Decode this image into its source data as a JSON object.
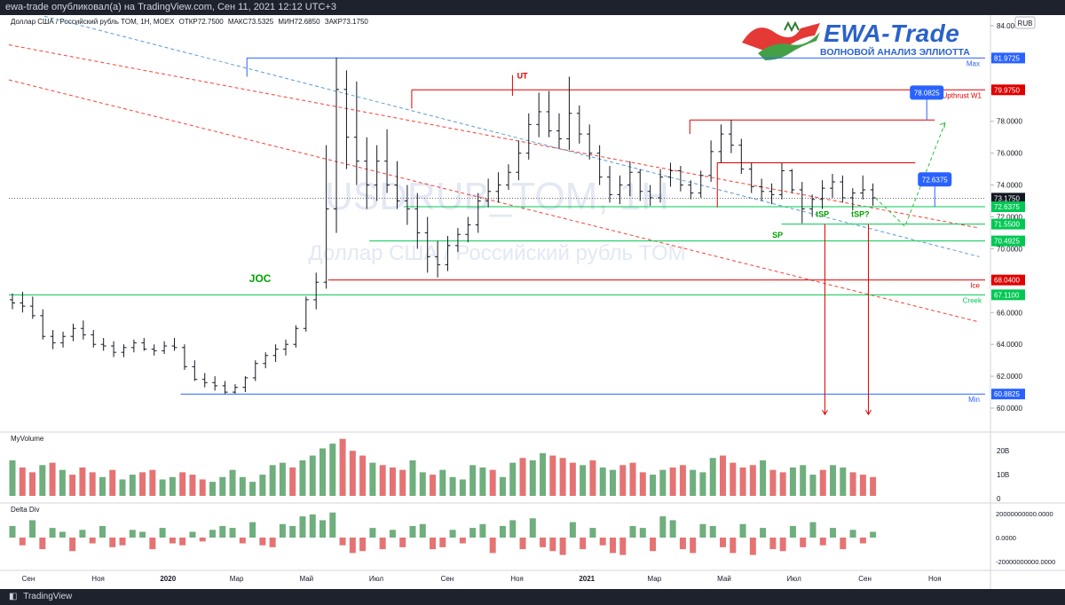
{
  "header": {
    "publish_text": "ewa-trade опубликовал(а) на TradingView.com, Сен 11, 2021 12:12 UTC+3"
  },
  "symbol_info": {
    "name": "Доллар США / Российский рубль TOM, 1Н, MOEX",
    "open": "ОТКР72.7500",
    "high": "МАКС73.5325",
    "low": "МИН72.6850",
    "close": "ЗАКР73.1750"
  },
  "currency_badge": "RUB",
  "logo": {
    "title": "EWA-Trade",
    "subtitle": "ВОЛНОВОЙ АНАЛИЗ ЭЛЛИОТТА"
  },
  "watermark": {
    "ticker": "USDRUB_TOM, 1H",
    "name": "Доллар США / Российский рубль TOM"
  },
  "footer": {
    "brand": "TradingView"
  },
  "colors": {
    "up": "#6fae7d",
    "down": "#e57373",
    "level_blue": "#2962ff",
    "level_red": "#e00000",
    "level_green": "#00c853",
    "channel_red": "#f44336",
    "channel_blue": "#5b9bd5",
    "forecast": "#2ebf3a"
  },
  "chart_data": [
    {
      "type": "bar",
      "panel": "price",
      "title": "",
      "ylim": [
        59,
        84.5
      ],
      "y_ticks": [
        "84.0000",
        "82.0000",
        "80.0000",
        "78.0000",
        "76.0000",
        "74.0000",
        "72.0000",
        "70.0000",
        "68.0000",
        "66.0000",
        "64.0000",
        "62.0000",
        "60.0000"
      ],
      "x_tick_labels": [
        "Сен",
        "Ноя",
        "2020",
        "Мар",
        "Май",
        "Июл",
        "Сен",
        "Ноя",
        "2021",
        "Мар",
        "Май",
        "Июл",
        "Сен",
        "Ноя"
      ],
      "x_range": [
        "2019-08-15",
        "2021-12-15"
      ],
      "series_note": "OHLC bars, approximate",
      "ohlc": [
        [
          66.8,
          67.2,
          66.2,
          66.6
        ],
        [
          66.6,
          67.3,
          66.0,
          66.4
        ],
        [
          66.4,
          67.0,
          65.6,
          65.8
        ],
        [
          65.8,
          66.2,
          64.3,
          64.5
        ],
        [
          64.5,
          64.9,
          63.7,
          64.1
        ],
        [
          64.1,
          64.8,
          63.8,
          64.5
        ],
        [
          64.5,
          65.3,
          64.2,
          65.0
        ],
        [
          65.0,
          65.5,
          64.3,
          64.6
        ],
        [
          64.6,
          64.9,
          63.8,
          64.0
        ],
        [
          64.0,
          64.4,
          63.6,
          63.9
        ],
        [
          63.9,
          64.2,
          63.2,
          63.5
        ],
        [
          63.5,
          64.0,
          63.2,
          63.8
        ],
        [
          63.8,
          64.3,
          63.5,
          64.1
        ],
        [
          64.1,
          64.4,
          63.6,
          63.7
        ],
        [
          63.7,
          64.0,
          63.3,
          63.6
        ],
        [
          63.6,
          64.2,
          63.4,
          63.9
        ],
        [
          63.9,
          64.4,
          63.6,
          63.8
        ],
        [
          63.8,
          64.0,
          62.4,
          62.6
        ],
        [
          62.6,
          63.0,
          61.7,
          61.8
        ],
        [
          61.8,
          62.2,
          61.3,
          61.6
        ],
        [
          61.6,
          62.0,
          61.1,
          61.4
        ],
        [
          61.4,
          61.7,
          60.9,
          61.0
        ],
        [
          61.0,
          61.5,
          60.9,
          61.3
        ],
        [
          61.3,
          62.0,
          61.0,
          61.9
        ],
        [
          61.9,
          63.0,
          61.7,
          62.8
        ],
        [
          62.8,
          63.5,
          62.5,
          63.3
        ],
        [
          63.3,
          64.0,
          62.9,
          63.7
        ],
        [
          63.7,
          64.3,
          63.3,
          64.0
        ],
        [
          64.0,
          65.2,
          63.8,
          65.0
        ],
        [
          65.0,
          67.0,
          64.8,
          66.8
        ],
        [
          66.8,
          68.5,
          66.2,
          67.9
        ],
        [
          67.9,
          76.5,
          67.5,
          72.5
        ],
        [
          72.5,
          82.0,
          71.0,
          80.0
        ],
        [
          80.0,
          81.2,
          75.0,
          77.0
        ],
        [
          77.0,
          80.5,
          74.0,
          75.5
        ],
        [
          75.5,
          77.0,
          72.5,
          74.0
        ],
        [
          74.0,
          76.5,
          73.0,
          75.5
        ],
        [
          75.5,
          77.5,
          73.5,
          74.0
        ],
        [
          74.0,
          75.5,
          72.5,
          73.0
        ],
        [
          73.0,
          74.0,
          71.5,
          72.5
        ],
        [
          72.5,
          73.5,
          70.0,
          71.0
        ],
        [
          71.0,
          72.0,
          68.5,
          69.5
        ],
        [
          69.5,
          70.5,
          68.2,
          69.0
        ],
        [
          69.0,
          70.8,
          68.6,
          70.2
        ],
        [
          70.2,
          71.3,
          69.8,
          70.9
        ],
        [
          70.9,
          72.0,
          70.4,
          71.5
        ],
        [
          71.5,
          73.5,
          71.0,
          73.0
        ],
        [
          73.0,
          74.4,
          72.6,
          73.6
        ],
        [
          73.6,
          74.8,
          72.9,
          74.0
        ],
        [
          74.0,
          75.3,
          73.7,
          74.8
        ],
        [
          74.8,
          76.8,
          74.3,
          76.0
        ],
        [
          76.0,
          78.5,
          75.6,
          77.8
        ],
        [
          77.8,
          79.8,
          77.0,
          78.6
        ],
        [
          78.6,
          79.9,
          77.0,
          77.4
        ],
        [
          77.4,
          78.5,
          76.3,
          76.9
        ],
        [
          76.9,
          80.8,
          76.2,
          78.5
        ],
        [
          78.5,
          79.0,
          76.6,
          77.2
        ],
        [
          77.2,
          77.8,
          75.6,
          76.0
        ],
        [
          76.0,
          76.5,
          74.0,
          74.5
        ],
        [
          74.5,
          75.2,
          72.9,
          73.4
        ],
        [
          73.4,
          74.6,
          72.8,
          74.0
        ],
        [
          74.0,
          75.5,
          73.3,
          74.8
        ],
        [
          74.8,
          75.0,
          73.0,
          73.6
        ],
        [
          73.6,
          74.0,
          72.7,
          73.2
        ],
        [
          73.2,
          75.0,
          72.9,
          74.5
        ],
        [
          74.5,
          75.4,
          73.9,
          74.9
        ],
        [
          74.9,
          75.2,
          73.6,
          74.0
        ],
        [
          74.0,
          74.3,
          73.1,
          73.5
        ],
        [
          73.5,
          74.9,
          73.2,
          74.6
        ],
        [
          74.6,
          76.8,
          74.2,
          76.1
        ],
        [
          76.1,
          77.8,
          75.4,
          77.2
        ],
        [
          77.2,
          78.1,
          76.0,
          76.5
        ],
        [
          76.5,
          76.9,
          74.7,
          75.0
        ],
        [
          75.0,
          75.4,
          73.5,
          73.9
        ],
        [
          73.9,
          74.4,
          73.0,
          73.6
        ],
        [
          73.6,
          74.1,
          72.8,
          73.4
        ],
        [
          73.4,
          75.4,
          73.1,
          74.9
        ],
        [
          74.9,
          75.0,
          73.5,
          73.7
        ],
        [
          73.7,
          74.2,
          71.6,
          72.5
        ],
        [
          72.5,
          73.4,
          72.0,
          73.1
        ],
        [
          73.1,
          74.3,
          72.5,
          73.8
        ],
        [
          73.8,
          74.7,
          73.2,
          74.2
        ],
        [
          74.2,
          74.6,
          72.9,
          73.2
        ],
        [
          73.2,
          73.8,
          72.4,
          73.5
        ],
        [
          73.5,
          74.6,
          73.1,
          73.7
        ],
        [
          73.7,
          74.1,
          72.7,
          73.2
        ]
      ]
    },
    {
      "type": "bar",
      "panel": "volume",
      "title": "MyVolume",
      "y_ticks": [
        "20B",
        "10B",
        "0"
      ],
      "ylim": [
        0,
        26
      ],
      "values": [
        16,
        13,
        11,
        14,
        15,
        12,
        10,
        13,
        11,
        9,
        12,
        8,
        10,
        11,
        12,
        8,
        9,
        11,
        10,
        8,
        7,
        9,
        12,
        9,
        7,
        10,
        14,
        15,
        13,
        16,
        18,
        21,
        23,
        25,
        20,
        18,
        15,
        14,
        13,
        12,
        16,
        11,
        10,
        12,
        9,
        8,
        14,
        13,
        12,
        9,
        15,
        17,
        16,
        19,
        18,
        17,
        15,
        14,
        16,
        13,
        12,
        14,
        15,
        11,
        10,
        12,
        13,
        14,
        12,
        11,
        17,
        18,
        15,
        13,
        14,
        16,
        12,
        11,
        13,
        14,
        10,
        12,
        14,
        13,
        11,
        10,
        9
      ],
      "up": [
        true,
        false,
        false,
        true,
        false,
        true,
        false,
        false,
        false,
        true,
        false,
        true,
        true,
        false,
        false,
        true,
        true,
        false,
        false,
        false,
        true,
        true,
        true,
        true,
        true,
        true,
        true,
        true,
        false,
        true,
        true,
        true,
        true,
        false,
        false,
        false,
        true,
        false,
        false,
        false,
        true,
        true,
        false,
        true,
        true,
        true,
        true,
        true,
        false,
        true,
        true,
        false,
        true,
        true,
        false,
        false,
        false,
        true,
        false,
        true,
        true,
        false,
        false,
        false,
        true,
        true,
        false,
        false,
        true,
        true,
        true,
        false,
        false,
        false,
        false,
        true,
        false,
        false,
        true,
        true,
        true,
        false,
        true,
        true,
        false,
        false,
        false
      ]
    },
    {
      "type": "bar",
      "panel": "delta",
      "title": "Delta Div",
      "y_ticks": [
        "20000000000.0000",
        "0.0000",
        "-20000000000.0000"
      ],
      "ylim": [
        -25000000000,
        25000000000
      ],
      "values": [
        6,
        -4,
        9,
        -6,
        5,
        3,
        -7,
        4,
        -3,
        6,
        -5,
        -4,
        4,
        3,
        -6,
        5,
        -3,
        -4,
        3,
        -2,
        4,
        6,
        5,
        -3,
        8,
        -4,
        -5,
        7,
        6,
        11,
        12,
        9,
        13,
        -4,
        -8,
        -7,
        5,
        -6,
        4,
        -5,
        6,
        7,
        -6,
        -5,
        4,
        -3,
        5,
        7,
        -8,
        6,
        9,
        -6,
        10,
        -5,
        -7,
        -9,
        8,
        -6,
        5,
        -4,
        -8,
        -9,
        6,
        5,
        -7,
        11,
        9,
        -6,
        -8,
        7,
        6,
        -5,
        -8,
        7,
        -9,
        5,
        -6,
        -7,
        6,
        -5,
        8,
        -4,
        5,
        -6,
        4,
        -3,
        3
      ]
    }
  ],
  "annotations": {
    "level_labels": {
      "max": "Max",
      "upthrust": "Upthrust W1",
      "ice": "Ice",
      "creek": "Creek",
      "min": "Min"
    },
    "price_badges": {
      "max": "81.9725",
      "upthrust": "79.9750",
      "current": "73.1750",
      "green1": "72.6375",
      "green2": "71.5500",
      "green3": "70.4925",
      "ice": "68.0400",
      "creek": "67.1100",
      "min": "60.8825"
    },
    "target_callouts": [
      "78.0825",
      "72.6375"
    ],
    "text_labels": {
      "joc": "JOC",
      "ut": "UT",
      "sp": "SP",
      "tsp": "tSP",
      "tsp_q": "tSP?"
    }
  }
}
